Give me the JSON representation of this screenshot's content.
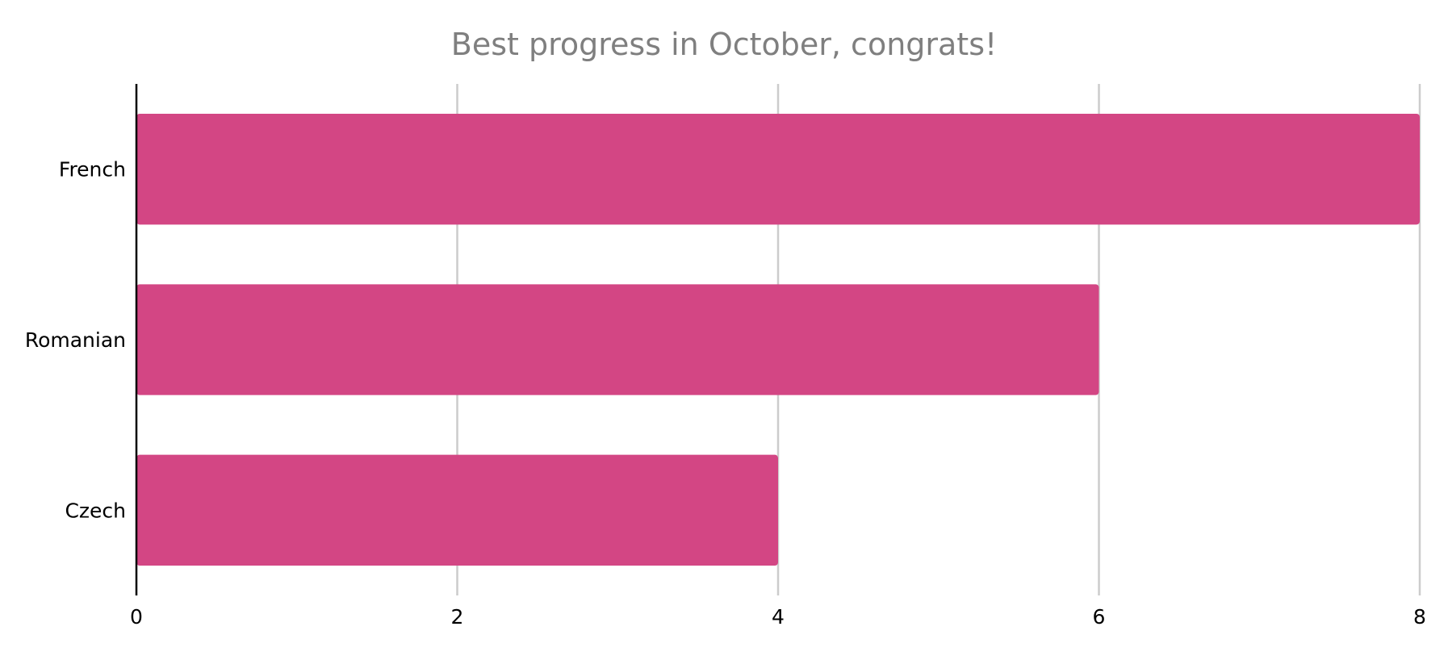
{
  "chart_data": {
    "type": "bar",
    "orientation": "horizontal",
    "title": "Best progress in October, congrats!",
    "categories": [
      "French",
      "Romanian",
      "Czech"
    ],
    "values": [
      8,
      6,
      4
    ],
    "xlabel": "",
    "ylabel": "",
    "xlim": [
      0,
      8
    ],
    "x_ticks": [
      0,
      2,
      4,
      6,
      8
    ],
    "grid": true,
    "legend": "none",
    "colors": {
      "bar": "#d34684",
      "grid": "#cccccc",
      "axis": "#000000",
      "title": "#7f7f7f"
    }
  }
}
